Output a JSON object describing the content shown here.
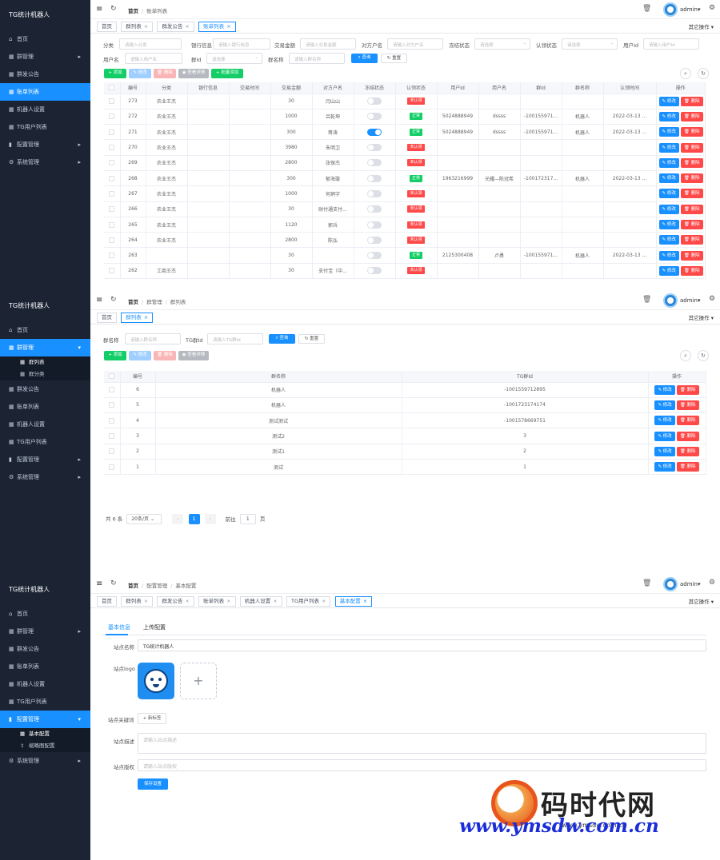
{
  "app": {
    "title": "TG统计机器人",
    "user": "admin",
    "more_ops": "其它操作",
    "home_crumb": "首页",
    "icons": [
      "hamburger-icon",
      "refresh-icon",
      "trash-icon",
      "user-avatar-icon",
      "gear-icon"
    ]
  },
  "sidebar": {
    "home": "首页",
    "group_mgmt": "群管理",
    "group_list": "群列表",
    "group_category": "群分类",
    "group_announce": "群发公告",
    "bill_list": "账单列表",
    "bot_settings": "机器人设置",
    "tg_users": "TG用户列表",
    "config_mgmt": "配置管理",
    "basic_config": "基本配置",
    "thumb_config": "缩略图配置",
    "system_mgmt": "系统管理"
  },
  "panel1": {
    "crumbs": [
      "首页",
      "账单列表"
    ],
    "tabs": [
      "首页",
      "群列表",
      "群发公告",
      "账单列表"
    ],
    "filters": {
      "category": {
        "label": "分类",
        "placeholder": "请输入分类"
      },
      "bank": {
        "label": "银行信息",
        "placeholder": "请输入银行信息"
      },
      "amount": {
        "label": "交易金额",
        "placeholder": "请输入交易金额"
      },
      "payee": {
        "label": "对方户名",
        "placeholder": "请输入对方户名"
      },
      "freeze": {
        "label": "冻结状态",
        "placeholder": "请选择"
      },
      "verify": {
        "label": "认领状态",
        "placeholder": "请选择"
      },
      "user_id": {
        "label": "用户Id",
        "placeholder": "请输入用户Id"
      },
      "username": {
        "label": "用户名",
        "placeholder": "请输入用户名"
      },
      "group_id": {
        "label": "群Id",
        "placeholder": "请选择"
      },
      "group_name": {
        "label": "群名称",
        "placeholder": "请输入群名称"
      }
    },
    "buttons": {
      "search": "查询",
      "reset": "重置",
      "add": "添加",
      "edit": "修改",
      "delete": "删除",
      "export": "查看详情",
      "batch_add": "批量添加"
    },
    "columns": [
      "编号",
      "分类",
      "银行信息",
      "交易时间",
      "交易金额",
      "对方户名",
      "冻结状态",
      "认领状态",
      "用户Id",
      "用户名",
      "群Id",
      "群名称",
      "认领时间",
      "操作"
    ],
    "row_edit": "修改",
    "row_delete": "删除",
    "rows": [
      {
        "id": "273",
        "cat": "农业王杰",
        "bank": "",
        "time": "",
        "amount": "30",
        "payee": "闫山山",
        "frozen": false,
        "status": "未认领",
        "ok": false,
        "uid": "",
        "uname": "",
        "gid": "",
        "gname": "",
        "vtime": ""
      },
      {
        "id": "272",
        "cat": "农业王杰",
        "bank": "",
        "time": "",
        "amount": "1000",
        "payee": "吕乾坤",
        "frozen": false,
        "status": "正常",
        "ok": true,
        "uid": "5024888949",
        "uname": "dssss",
        "gid": "-100155971...",
        "gname": "机器人",
        "vtime": "2022-03-13 ..."
      },
      {
        "id": "271",
        "cat": "农业王杰",
        "bank": "",
        "time": "",
        "amount": "300",
        "payee": "蒋涛",
        "frozen": true,
        "status": "正常",
        "ok": true,
        "uid": "5024888949",
        "uname": "dssss",
        "gid": "-100155971...",
        "gname": "机器人",
        "vtime": "2022-03-13 ..."
      },
      {
        "id": "270",
        "cat": "农业王杰",
        "bank": "",
        "time": "",
        "amount": "3980",
        "payee": "朱明卫",
        "frozen": false,
        "status": "未认领",
        "ok": false,
        "uid": "",
        "uname": "",
        "gid": "",
        "gname": "",
        "vtime": ""
      },
      {
        "id": "269",
        "cat": "农业王杰",
        "bank": "",
        "time": "",
        "amount": "2800",
        "payee": "张保杰",
        "frozen": false,
        "status": "未认领",
        "ok": false,
        "uid": "",
        "uname": "",
        "gid": "",
        "gname": "",
        "vtime": ""
      },
      {
        "id": "268",
        "cat": "农业王杰",
        "bank": "",
        "time": "",
        "amount": "300",
        "payee": "郁海璇",
        "frozen": false,
        "status": "正常",
        "ok": true,
        "uid": "1963216999",
        "uname": "光耀—陈冠希",
        "gid": "-100172317...",
        "gname": "机器人",
        "vtime": "2022-03-13 ..."
      },
      {
        "id": "267",
        "cat": "农业王杰",
        "bank": "",
        "time": "",
        "amount": "1000",
        "payee": "何炳字",
        "frozen": false,
        "status": "未认领",
        "ok": false,
        "uid": "",
        "uname": "",
        "gid": "",
        "gname": "",
        "vtime": ""
      },
      {
        "id": "266",
        "cat": "农业王杰",
        "bank": "",
        "time": "",
        "amount": "30",
        "payee": "财付通支付...",
        "frozen": false,
        "status": "未认领",
        "ok": false,
        "uid": "",
        "uname": "",
        "gid": "",
        "gname": "",
        "vtime": ""
      },
      {
        "id": "265",
        "cat": "农业王杰",
        "bank": "",
        "time": "",
        "amount": "1120",
        "payee": "郭兵",
        "frozen": false,
        "status": "未认领",
        "ok": false,
        "uid": "",
        "uname": "",
        "gid": "",
        "gname": "",
        "vtime": ""
      },
      {
        "id": "264",
        "cat": "农业王杰",
        "bank": "",
        "time": "",
        "amount": "2800",
        "payee": "陈弘",
        "frozen": false,
        "status": "未认领",
        "ok": false,
        "uid": "",
        "uname": "",
        "gid": "",
        "gname": "",
        "vtime": ""
      },
      {
        "id": "263",
        "cat": "",
        "bank": "",
        "time": "",
        "amount": "30",
        "payee": "",
        "frozen": false,
        "status": "正常",
        "ok": true,
        "uid": "2125300408",
        "uname": "卢勇",
        "gid": "-100155971...",
        "gname": "机器人",
        "vtime": "2022-03-13 ..."
      },
      {
        "id": "262",
        "cat": "工商王杰",
        "bank": "",
        "time": "",
        "amount": "30",
        "payee": "支付宝（中...",
        "frozen": false,
        "status": "未认领",
        "ok": false,
        "uid": "",
        "uname": "",
        "gid": "",
        "gname": "",
        "vtime": ""
      }
    ]
  },
  "panel2": {
    "crumbs": [
      "首页",
      "群管理",
      "群列表"
    ],
    "tabs": [
      "首页",
      "群列表"
    ],
    "filters": {
      "group_name": {
        "label": "群名称",
        "placeholder": "请输入群名称"
      },
      "tg_group_id": {
        "label": "TG群Id",
        "placeholder": "请输入TG群Id"
      }
    },
    "buttons": {
      "search": "查询",
      "reset": "重置",
      "add": "添加",
      "edit": "修改",
      "delete": "删除",
      "export": "查看详情"
    },
    "columns": [
      "编号",
      "群名称",
      "TG群Id",
      "操作"
    ],
    "row_edit": "修改",
    "row_delete": "删除",
    "rows": [
      {
        "id": "6",
        "name": "机器人",
        "tgid": "-1001559712895"
      },
      {
        "id": "5",
        "name": "机器人",
        "tgid": "-1001723174174"
      },
      {
        "id": "4",
        "name": "测试测试",
        "tgid": "-1001578669751"
      },
      {
        "id": "3",
        "name": "测试2",
        "tgid": "3"
      },
      {
        "id": "2",
        "name": "测试1",
        "tgid": "2"
      },
      {
        "id": "1",
        "name": "测试",
        "tgid": "1"
      }
    ],
    "pager": {
      "total": "共 6 条",
      "size": "20条/页",
      "page": "1",
      "goto": "前往",
      "goto_val": "1",
      "page_unit": "页"
    }
  },
  "panel3": {
    "crumbs": [
      "首页",
      "配置管理",
      "基本配置"
    ],
    "tabs": [
      "首页",
      "群列表",
      "群发公告",
      "账单列表",
      "机器人设置",
      "TG用户列表",
      "基本配置"
    ],
    "subtabs": [
      "基本信息",
      "上传配置"
    ],
    "form": {
      "site_name": {
        "label": "站点名称",
        "value": "TG统计机器人"
      },
      "site_logo": {
        "label": "站点logo"
      },
      "keywords": {
        "label": "站点关键词",
        "button": "+ 新标签"
      },
      "desc": {
        "label": "站点描述",
        "placeholder": "请输入站点描述"
      },
      "copyright": {
        "label": "站点版权",
        "placeholder": "请输入站点版权"
      },
      "save": "保存设置"
    }
  },
  "watermark": {
    "text_cn": "码时代网",
    "url": "www.ymsdw.com.cn",
    "small": "www.ymsdw.com.cn"
  }
}
